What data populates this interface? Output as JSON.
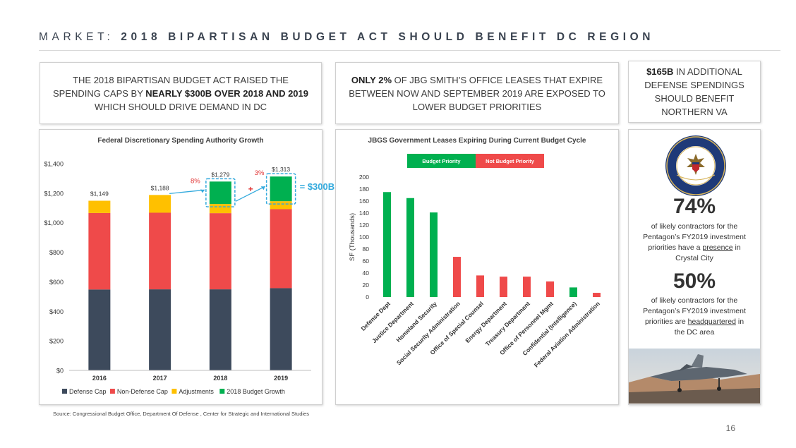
{
  "header": {
    "title_prefix": "MARKET:",
    "title_main": " 2018 BIPARTISAN BUDGET ACT SHOULD BENEFIT DC REGION"
  },
  "callouts": {
    "box1": {
      "line1": "THE 2018 BIPARTISAN BUDGET ACT RAISED THE",
      "line2_pre": "SPENDING CAPS BY ",
      "line2_bold": "NEARLY $300B OVER 2018 AND 2019",
      "line3": "WHICH SHOULD DRIVE DEMAND IN DC"
    },
    "box2": {
      "bold": "ONLY 2%",
      "rest1": " OF JBG SMITH’S OFFICE LEASES THAT EXPIRE",
      "line2": "BETWEEN NOW AND SEPTEMBER 2019 ARE EXPOSED TO",
      "line3": "LOWER BUDGET PRIORITIES"
    },
    "box3": {
      "bold": "$165B",
      "rest1": " IN ADDITIONAL",
      "line2": "DEFENSE SPENDINGS",
      "line3": "SHOULD BENEFIT",
      "line4": "NORTHERN VA"
    }
  },
  "stats": {
    "stat1": {
      "value": "74%",
      "desc_l1": "of likely contractors for the",
      "desc_l2": "Pentagon’s FY2019 investment",
      "desc_l3_pre": "priorities have a ",
      "desc_l3_u": "presence",
      "desc_l3_post": " in",
      "desc_l4": "Crystal City"
    },
    "stat2": {
      "value": "50%",
      "desc_l1": "of likely contractors for the",
      "desc_l2": "Pentagon’s FY2019 investment",
      "desc_l3_pre": "priorities are ",
      "desc_l3_u": "headquartered",
      "desc_l3_post": " in",
      "desc_l4": "the DC area"
    }
  },
  "footer": {
    "source": "Source: Congressional Budget Office, Department Of Defense , Center for Strategic and International Studies",
    "page": "16"
  },
  "chart_data": [
    {
      "type": "bar",
      "stacked": true,
      "title": "Federal Discretionary Spending Authority Growth",
      "categories": [
        "2016",
        "2017",
        "2018",
        "2019"
      ],
      "series": [
        {
          "name": "Defense Cap",
          "color": "#3d4a5c",
          "values": [
            548,
            549,
            549,
            557
          ]
        },
        {
          "name": "Non-Defense Cap",
          "color": "#ef4a4a",
          "values": [
            518,
            519,
            516,
            535
          ]
        },
        {
          "name": "Adjustments",
          "color": "#ffc000",
          "values": [
            83,
            120,
            62,
            54
          ]
        },
        {
          "name": "2018 Budget Growth",
          "color": "#00b050",
          "values": [
            0,
            0,
            152,
            167
          ]
        }
      ],
      "totals": [
        "$1,149",
        "$1,188",
        "$1,279",
        "$1,313"
      ],
      "ylim": [
        0,
        1400
      ],
      "yticks": [
        0,
        200,
        400,
        600,
        800,
        1000,
        1200,
        1400
      ],
      "ytick_labels": [
        "$0",
        "$200",
        "$400",
        "$600",
        "$800",
        "$1,000",
        "$1,200",
        "$1,400"
      ],
      "annotations": {
        "pct_2018": "8%",
        "pct_2019": "3%",
        "plus": "+",
        "total": "= $300B"
      },
      "legend": "bottom"
    },
    {
      "type": "bar",
      "title": "JBGS Government Leases Expiring During Current Budget Cycle",
      "ylabel": "SF (Thousands)",
      "ylim": [
        0,
        200
      ],
      "yticks": [
        0,
        20,
        40,
        60,
        80,
        100,
        120,
        140,
        160,
        180,
        200
      ],
      "categories": [
        "Defense Dept",
        "Justice Department",
        "Homeland Security",
        "Social Security Administration",
        "Office of Special Counsel",
        "Energy Department",
        "Treasury Department",
        "Office of Personnel Mgmt",
        "Confidential (Intelligence)",
        "Federal Aviation Administration"
      ],
      "values": [
        175,
        165,
        141,
        67,
        36,
        34,
        34,
        26,
        16,
        7
      ],
      "priority": [
        true,
        true,
        true,
        false,
        false,
        false,
        false,
        false,
        true,
        false
      ],
      "legend_labels": {
        "priority": "Budget Priority",
        "not_priority": "Not Budget Priority"
      },
      "colors": {
        "priority": "#00b050",
        "not_priority": "#ef4a4a"
      },
      "legend": "top"
    }
  ]
}
